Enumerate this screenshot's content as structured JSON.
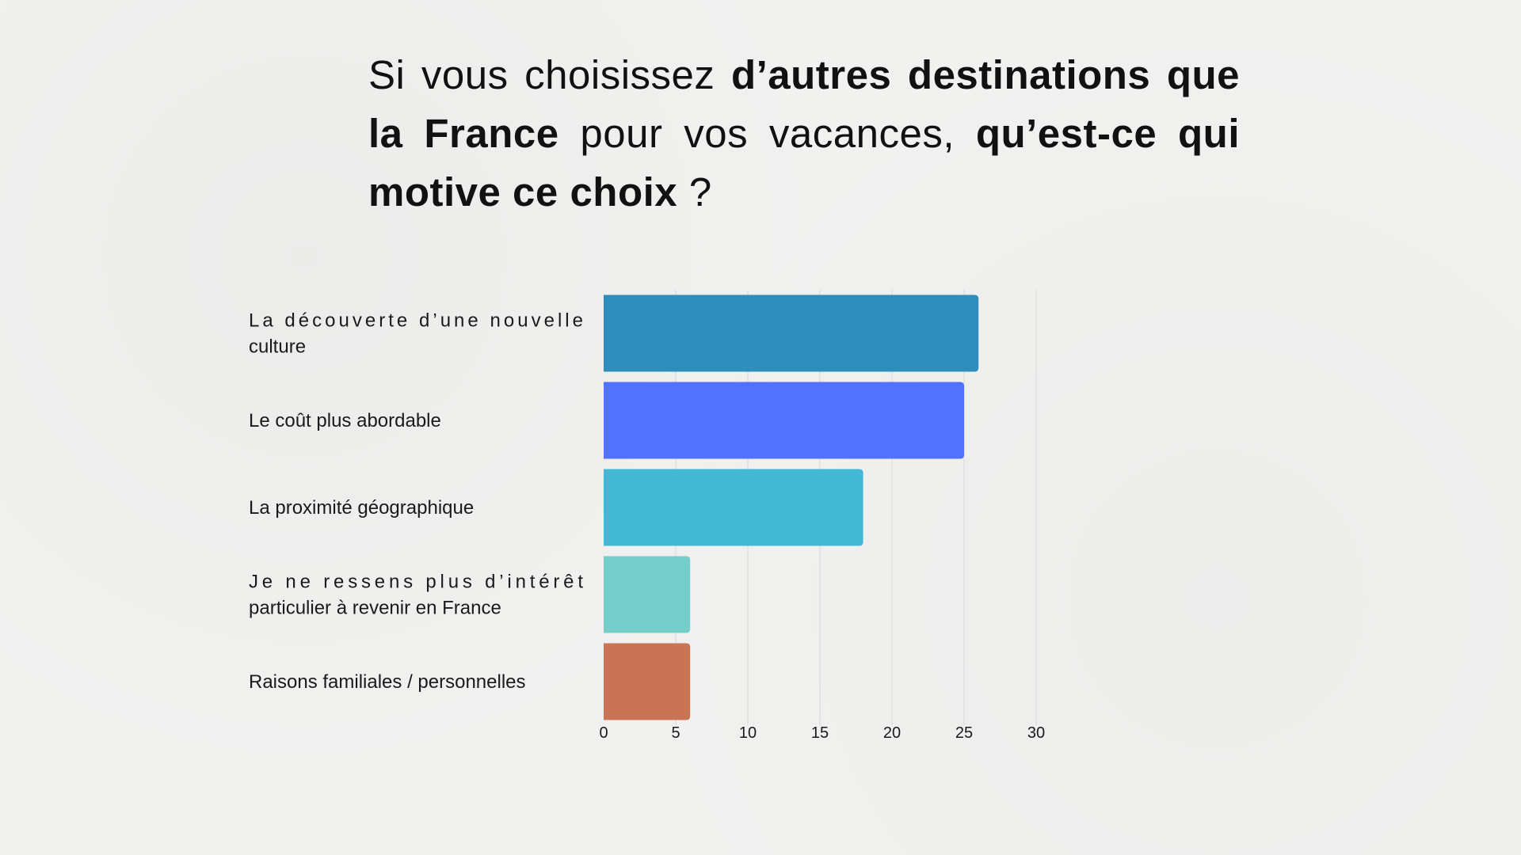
{
  "title": {
    "parts": [
      {
        "text": "Si vous choisissez ",
        "bold": false
      },
      {
        "text": "d’autres destinations que la France",
        "bold": true
      },
      {
        "text": " pour vos vacances, ",
        "bold": false
      },
      {
        "text": "qu’est-ce qui motive ce choix",
        "bold": true
      },
      {
        "text": " ?",
        "bold": false
      }
    ]
  },
  "chart_data": {
    "type": "bar",
    "orientation": "horizontal",
    "categories": [
      "La découverte d’une nouvelle culture",
      "Le coût plus abordable",
      "La proximité géographique",
      "Je ne ressens plus d’intérêt particulier à revenir en France",
      "Raisons familiales / personnelles"
    ],
    "category_lines": [
      [
        "La découverte d’une nouvelle",
        "culture"
      ],
      [
        "Le coût plus abordable"
      ],
      [
        "La proximité géographique"
      ],
      [
        "Je ne ressens plus d’intérêt",
        "particulier à revenir en France"
      ],
      [
        "Raisons familiales / personnelles"
      ]
    ],
    "values": [
      26,
      25,
      18,
      6,
      6
    ],
    "colors": [
      "#2e8dba",
      "#5271ff",
      "#43b8d5",
      "#76cecb",
      "#c97455"
    ],
    "xlim": [
      0,
      30
    ],
    "xticks": [
      0,
      5,
      10,
      15,
      20,
      25,
      30
    ],
    "grid": true,
    "legend": "none",
    "xlabel": "",
    "ylabel": ""
  }
}
